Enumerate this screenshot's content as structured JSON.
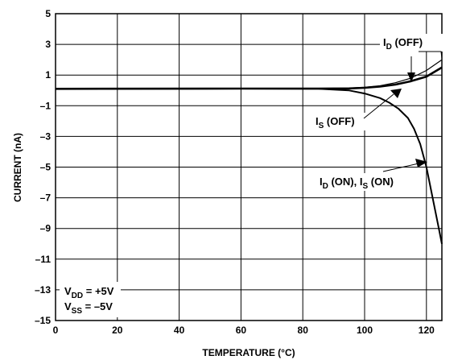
{
  "chart_data": {
    "type": "line",
    "xlabel": "TEMPERATURE (°C)",
    "ylabel": "CURRENT (nA)",
    "xlim": [
      0,
      125
    ],
    "ylim": [
      -15,
      5
    ],
    "xticks": [
      0,
      20,
      40,
      60,
      80,
      100,
      120
    ],
    "yticks": [
      5,
      3,
      1,
      -1,
      -3,
      -5,
      -7,
      -9,
      -11,
      -13,
      -15
    ],
    "x_tick_labels": [
      "0",
      "20",
      "40",
      "60",
      "80",
      "100",
      "120"
    ],
    "y_tick_labels": [
      "5",
      "3",
      "1",
      "–1",
      "–3",
      "–5",
      "–7",
      "–9",
      "–11",
      "–13",
      "–15"
    ],
    "grid": true,
    "series": [
      {
        "name": "ID (OFF)",
        "x": [
          0,
          60,
          85,
          95,
          100,
          105,
          110,
          115,
          120,
          125
        ],
        "y": [
          0.1,
          0.12,
          0.12,
          0.15,
          0.2,
          0.3,
          0.5,
          0.8,
          1.3,
          2.0
        ]
      },
      {
        "name": "IS (OFF)",
        "x": [
          0,
          60,
          85,
          95,
          100,
          105,
          110,
          115,
          120,
          125
        ],
        "y": [
          0.1,
          0.12,
          0.12,
          0.13,
          0.17,
          0.25,
          0.38,
          0.6,
          0.9,
          1.5
        ]
      },
      {
        "name": "ID (ON), IS (ON)",
        "x": [
          0,
          60,
          85,
          95,
          100,
          105,
          108,
          111,
          114,
          116,
          118,
          120,
          122,
          124,
          125
        ],
        "y": [
          0.1,
          0.12,
          0.1,
          0.0,
          -0.2,
          -0.5,
          -0.8,
          -1.2,
          -1.8,
          -2.5,
          -3.5,
          -5.0,
          -7.0,
          -9.0,
          -10.0
        ]
      }
    ],
    "annotations": {
      "id_off": {
        "main": "I",
        "sub": "D",
        "rest": " (OFF)"
      },
      "is_off": {
        "main": "I",
        "sub": "S",
        "rest": " (OFF)"
      },
      "id_is_on": {
        "main1": "I",
        "sub1": "D",
        "mid": " (ON), I",
        "sub2": "S",
        "rest": " (ON)"
      },
      "conditions": [
        {
          "main": "V",
          "sub": "DD",
          "rest": " = +5V"
        },
        {
          "main": "V",
          "sub": "SS",
          "rest": " = –5V"
        }
      ]
    }
  }
}
